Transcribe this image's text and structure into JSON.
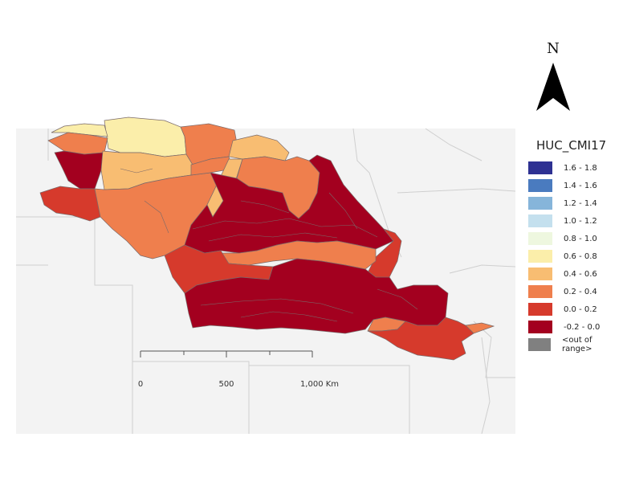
{
  "map": {
    "layer_name": "HUC_CMI17",
    "north_label": "N",
    "scale_bar": {
      "labels": [
        "0",
        "500",
        "1,000 Km"
      ]
    },
    "background_color": "#f3f3f3",
    "border_color": "#cfcfcf"
  },
  "legend": {
    "title": "HUC_CMI17",
    "items": [
      {
        "label": "1.6 - 1.8",
        "color": "#2e3192"
      },
      {
        "label": "1.4 - 1.6",
        "color": "#4a7bbf"
      },
      {
        "label": "1.2 - 1.4",
        "color": "#86b5da"
      },
      {
        "label": "1.0 - 1.2",
        "color": "#c4e0ee"
      },
      {
        "label": "0.8 - 1.0",
        "color": "#eef7df"
      },
      {
        "label": "0.6 - 0.8",
        "color": "#fbeeaa"
      },
      {
        "label": "0.4 - 0.6",
        "color": "#f8bd72"
      },
      {
        "label": "0.2 - 0.4",
        "color": "#ef7f4d"
      },
      {
        "label": "0.0 - 0.2",
        "color": "#d63a2c"
      },
      {
        "label": "-0.2 - 0.0",
        "color": "#a3001f"
      },
      {
        "label": "<out of range>",
        "color": "#808080"
      }
    ]
  }
}
